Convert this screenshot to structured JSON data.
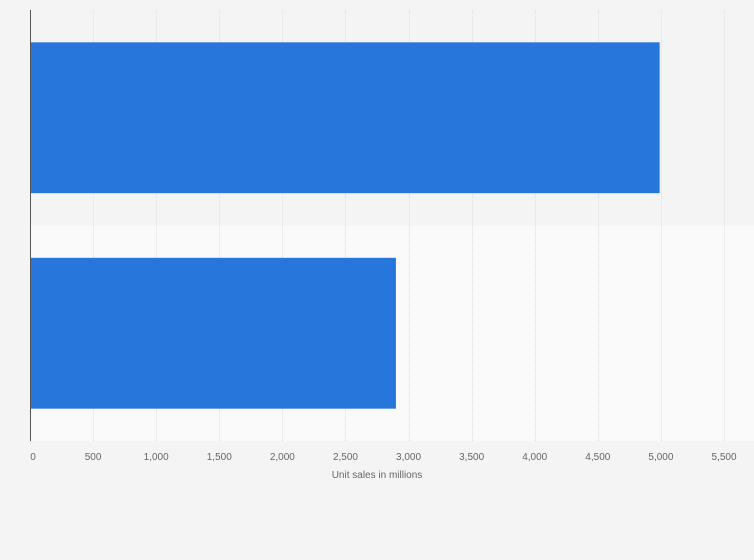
{
  "chart_data": {
    "type": "bar",
    "orientation": "horizontal",
    "categories": [
      "",
      ""
    ],
    "values": [
      4990,
      2900
    ],
    "title": "",
    "xlabel": "Unit sales in millions",
    "ylabel": "",
    "xlim": [
      0,
      5500
    ],
    "xticks": [
      0,
      500,
      1000,
      1500,
      2000,
      2500,
      3000,
      3500,
      4000,
      4500,
      5000,
      5500
    ],
    "xtick_labels": [
      "0",
      "500",
      "1,000",
      "1,500",
      "2,000",
      "2,500",
      "3,000",
      "3,500",
      "4,000",
      "4,500",
      "5,000",
      "5,500"
    ],
    "grid": true,
    "legend": "none",
    "colors": {
      "bar": "#2776dc",
      "band_odd": "#f4f4f4",
      "band_even": "#fafafa",
      "gridline": "#dedede",
      "axis": "#555555",
      "text": "#666666"
    }
  }
}
